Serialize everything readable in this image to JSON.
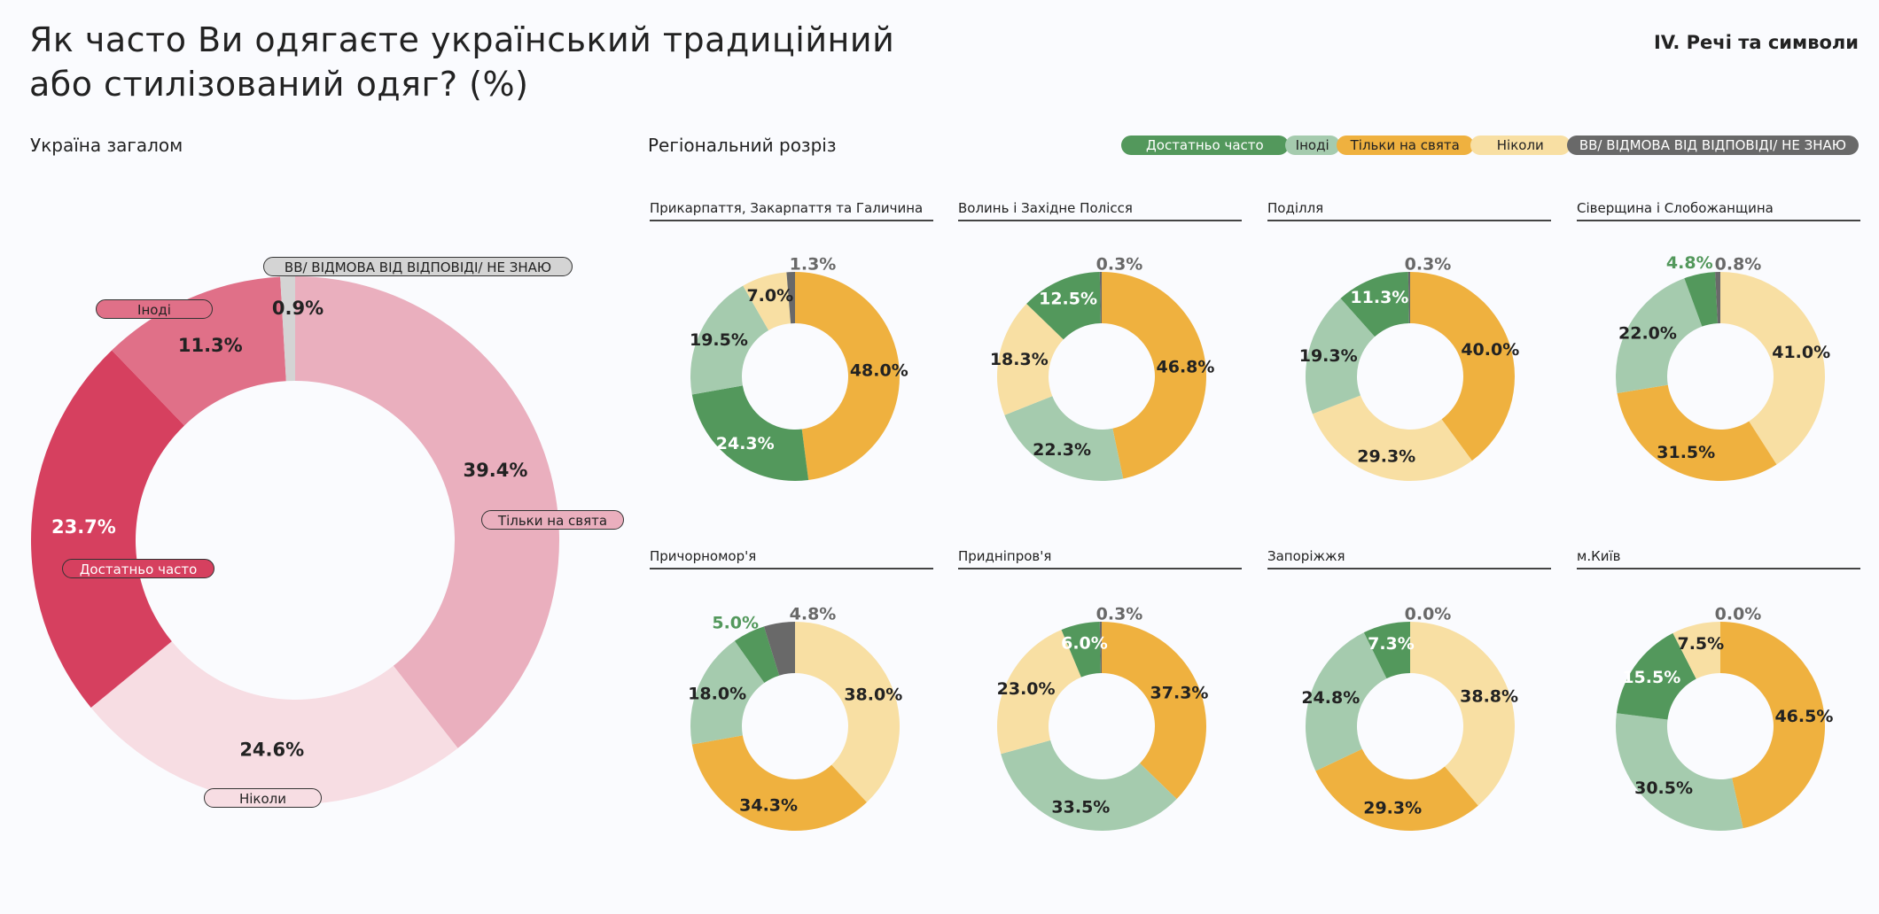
{
  "header": {
    "title_line1": "Як часто Ви одягаєте український традиційний",
    "title_line2": "або стилізований одяг? (%)",
    "section": "IV. Речі та символи"
  },
  "left_subtitle": "Україна загалом",
  "right_subtitle": "Регіональний розріз",
  "colors": {
    "often": "#53985c",
    "sometimes": "#a5cbae",
    "holidays": "#efb13f",
    "never": "#f8dfa3",
    "na": "#696969",
    "national_often": "#d6405f",
    "national_sometimes": "#e07088",
    "national_holidays": "#eaafbe",
    "national_never": "#f7dde3",
    "national_na": "#d4d4d4"
  },
  "legend": [
    {
      "key": "often",
      "label": "Достатньо часто"
    },
    {
      "key": "sometimes",
      "label": "Іноді"
    },
    {
      "key": "holidays",
      "label": "Тільки на свята"
    },
    {
      "key": "never",
      "label": "Ніколи"
    },
    {
      "key": "na",
      "label": "ВВ/ ВІДМОВА ВІД ВІДПОВІДІ/ НЕ ЗНАЮ"
    }
  ],
  "chart_data": [
    {
      "type": "pie",
      "title": "Україна загалом",
      "categories": [
        "Тільки на свята",
        "Ніколи",
        "Достатньо часто",
        "Іноді",
        "ВВ/ ВІДМОВА ВІД ВІДПОВІДІ/ НЕ ЗНАЮ"
      ],
      "keys": [
        "holidays",
        "never",
        "often",
        "sometimes",
        "na"
      ],
      "values": [
        39.4,
        24.6,
        23.7,
        11.3,
        0.9
      ],
      "labels": [
        "39.4%",
        "24.6%",
        "23.7%",
        "11.3%",
        "0.9%"
      ]
    },
    {
      "type": "pie",
      "title": "Прикарпаття, Закарпаття та Галичина",
      "keys": [
        "holidays",
        "often",
        "sometimes",
        "never",
        "na"
      ],
      "values": [
        48.0,
        24.3,
        19.5,
        7.0,
        1.3
      ],
      "labels": [
        "48.0%",
        "24.3%",
        "19.5%",
        "7.0%",
        "1.3%"
      ]
    },
    {
      "type": "pie",
      "title": "Волинь і Західне Полісся",
      "keys": [
        "holidays",
        "sometimes",
        "never",
        "often",
        "na"
      ],
      "values": [
        46.8,
        22.3,
        18.3,
        12.5,
        0.3
      ],
      "labels": [
        "46.8%",
        "22.3%",
        "18.3%",
        "12.5%",
        "0.3%"
      ]
    },
    {
      "type": "pie",
      "title": "Поділля",
      "keys": [
        "holidays",
        "never",
        "sometimes",
        "often",
        "na"
      ],
      "values": [
        40.0,
        29.3,
        19.3,
        11.3,
        0.3
      ],
      "labels": [
        "40.0%",
        "29.3%",
        "19.3%",
        "11.3%",
        "0.3%"
      ]
    },
    {
      "type": "pie",
      "title": "Сіверщина і Слобожанщина",
      "keys": [
        "never",
        "holidays",
        "sometimes",
        "often",
        "na"
      ],
      "values": [
        41.0,
        31.5,
        22.0,
        4.8,
        0.8
      ],
      "labels": [
        "41.0%",
        "31.5%",
        "22.0%",
        "4.8%",
        "0.8%"
      ]
    },
    {
      "type": "pie",
      "title": "Причорномор'я",
      "keys": [
        "never",
        "holidays",
        "sometimes",
        "often",
        "na"
      ],
      "values": [
        38.0,
        34.3,
        18.0,
        5.0,
        4.8
      ],
      "labels": [
        "38.0%",
        "34.3%",
        "18.0%",
        "5.0%",
        "4.8%"
      ]
    },
    {
      "type": "pie",
      "title": "Придніпров'я",
      "keys": [
        "holidays",
        "sometimes",
        "never",
        "often",
        "na"
      ],
      "values": [
        37.3,
        33.5,
        23.0,
        6.0,
        0.3
      ],
      "labels": [
        "37.3%",
        "33.5%",
        "23.0%",
        "6.0%",
        "0.3%"
      ]
    },
    {
      "type": "pie",
      "title": "Запоріжжя",
      "keys": [
        "never",
        "holidays",
        "sometimes",
        "often",
        "na"
      ],
      "values": [
        38.8,
        29.3,
        24.8,
        7.3,
        0.0
      ],
      "labels": [
        "38.8%",
        "29.3%",
        "24.8%",
        "7.3%",
        "0.0%"
      ]
    },
    {
      "type": "pie",
      "title": "м.Київ",
      "keys": [
        "holidays",
        "sometimes",
        "often",
        "never",
        "na"
      ],
      "values": [
        46.5,
        30.5,
        15.5,
        7.5,
        0.0
      ],
      "labels": [
        "46.5%",
        "30.5%",
        "15.5%",
        "7.5%",
        "0.0%"
      ]
    }
  ],
  "national_pills": {
    "na": "ВВ/ ВІДМОВА ВІД ВІДПОВІДІ/ НЕ ЗНАЮ",
    "sometimes": "Іноді",
    "holidays": "Тільки на свята",
    "often": "Достатньо часто",
    "never": "Ніколи"
  }
}
